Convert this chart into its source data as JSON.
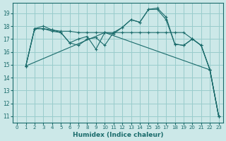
{
  "title": "",
  "xlabel": "Humidex (Indice chaleur)",
  "bg_color": "#cce8e8",
  "grid_color": "#99cccc",
  "line_color": "#1a6b6b",
  "xlim": [
    -0.5,
    23.5
  ],
  "ylim": [
    10.5,
    19.8
  ],
  "yticks": [
    11,
    12,
    13,
    14,
    15,
    16,
    17,
    18,
    19
  ],
  "xticks": [
    0,
    1,
    2,
    3,
    4,
    5,
    6,
    7,
    8,
    9,
    10,
    11,
    12,
    13,
    14,
    15,
    16,
    17,
    18,
    19,
    20,
    21,
    22,
    23
  ],
  "lines": [
    {
      "x": [
        1,
        2,
        3,
        4,
        5,
        6,
        7,
        8,
        9,
        10,
        11,
        12,
        13,
        14,
        15,
        16,
        17,
        18,
        19,
        20,
        21,
        22,
        23
      ],
      "y": [
        14.9,
        17.8,
        18.0,
        17.7,
        17.5,
        16.7,
        16.5,
        17.0,
        17.1,
        16.5,
        17.5,
        17.9,
        18.5,
        18.3,
        19.3,
        19.4,
        18.7,
        16.6,
        16.5,
        17.0,
        16.5,
        14.6,
        11.0
      ]
    },
    {
      "x": [
        1,
        2,
        3,
        4,
        5,
        6,
        7,
        8,
        9,
        10,
        11,
        12,
        13,
        14,
        15,
        16,
        17,
        18,
        19,
        20,
        21,
        22,
        23
      ],
      "y": [
        14.9,
        17.8,
        17.8,
        17.7,
        17.6,
        17.6,
        17.5,
        17.5,
        17.5,
        17.5,
        17.5,
        17.5,
        17.5,
        17.5,
        17.5,
        17.5,
        17.5,
        17.5,
        17.5,
        17.0,
        16.5,
        14.6,
        11.0
      ]
    },
    {
      "x": [
        1,
        2,
        3,
        4,
        5,
        6,
        7,
        8,
        9,
        10,
        11,
        12,
        13,
        14,
        15,
        16,
        17,
        18,
        19,
        20,
        21,
        22,
        23
      ],
      "y": [
        14.9,
        17.8,
        17.8,
        17.6,
        17.5,
        16.7,
        17.0,
        17.2,
        16.2,
        17.5,
        17.4,
        17.9,
        18.5,
        18.3,
        19.3,
        19.3,
        18.5,
        16.6,
        16.5,
        17.0,
        16.5,
        14.6,
        11.0
      ]
    },
    {
      "x": [
        1,
        10,
        22,
        23
      ],
      "y": [
        14.9,
        17.5,
        14.6,
        11.0
      ]
    }
  ]
}
